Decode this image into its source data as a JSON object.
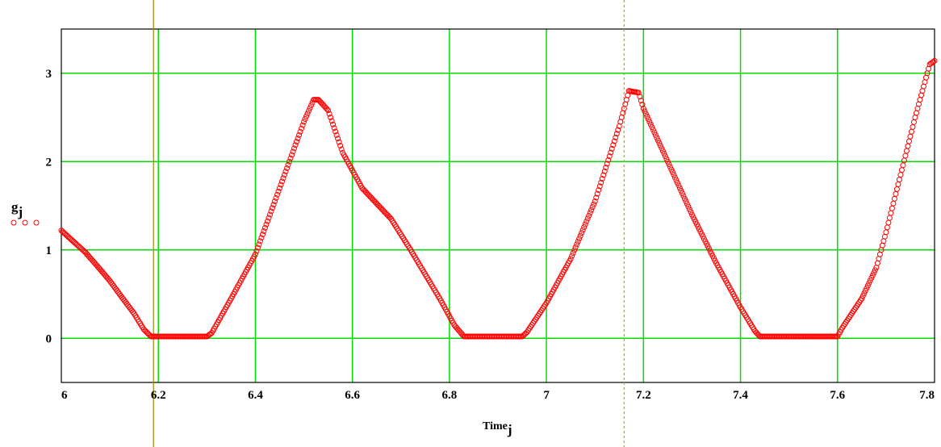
{
  "chart_data": {
    "type": "scatter",
    "xlabel": "Time",
    "xlabel_sub": "j",
    "ylabel": "g",
    "ylabel_sub": "j",
    "xlim": [
      6.0,
      7.8
    ],
    "ylim": [
      -0.5,
      3.5
    ],
    "xticks": [
      6,
      6.2,
      6.4,
      6.6,
      6.8,
      7,
      7.2,
      7.4,
      7.6,
      7.8
    ],
    "xtick_labels": [
      "6",
      "6.2",
      "6.4",
      "6.6",
      "6.8",
      "7",
      "7.2",
      "7.4",
      "7.6",
      "7.8"
    ],
    "yticks": [
      0,
      1,
      2,
      3
    ],
    "ytick_labels": [
      "0",
      "1",
      "2",
      "3"
    ],
    "grid": true,
    "legend": "left",
    "marker": "open-circle",
    "colors": {
      "series": "#ff0000",
      "grid": "#00dd00",
      "cursor_solid": "#8b8b00",
      "cursor_dashed": "#c8a000"
    },
    "cursors": [
      6.19,
      7.16
    ],
    "series": [
      {
        "x": [
          6.0,
          6.02,
          6.05,
          6.08,
          6.1,
          6.12,
          6.15,
          6.17,
          6.185,
          6.19,
          6.3,
          6.31,
          6.35,
          6.4,
          6.45,
          6.5,
          6.52,
          6.53,
          6.55,
          6.58,
          6.62,
          6.68,
          6.72,
          6.78,
          6.81,
          6.83,
          6.95,
          6.96,
          7.0,
          7.05,
          7.1,
          7.15,
          7.17,
          7.19,
          7.2,
          7.25,
          7.3,
          7.35,
          7.4,
          7.43,
          7.44,
          7.6,
          7.61,
          7.65,
          7.68,
          7.7,
          7.73,
          7.76,
          7.79,
          7.8
        ],
        "y": [
          1.22,
          1.12,
          0.97,
          0.78,
          0.65,
          0.5,
          0.28,
          0.1,
          0.02,
          0.02,
          0.02,
          0.06,
          0.45,
          0.95,
          1.7,
          2.45,
          2.7,
          2.7,
          2.58,
          2.1,
          1.7,
          1.35,
          1.0,
          0.45,
          0.15,
          0.02,
          0.02,
          0.07,
          0.4,
          0.9,
          1.55,
          2.4,
          2.8,
          2.78,
          2.6,
          2.0,
          1.4,
          0.85,
          0.35,
          0.08,
          0.02,
          0.02,
          0.12,
          0.45,
          0.8,
          1.2,
          1.85,
          2.5,
          3.1,
          3.14
        ]
      }
    ]
  }
}
